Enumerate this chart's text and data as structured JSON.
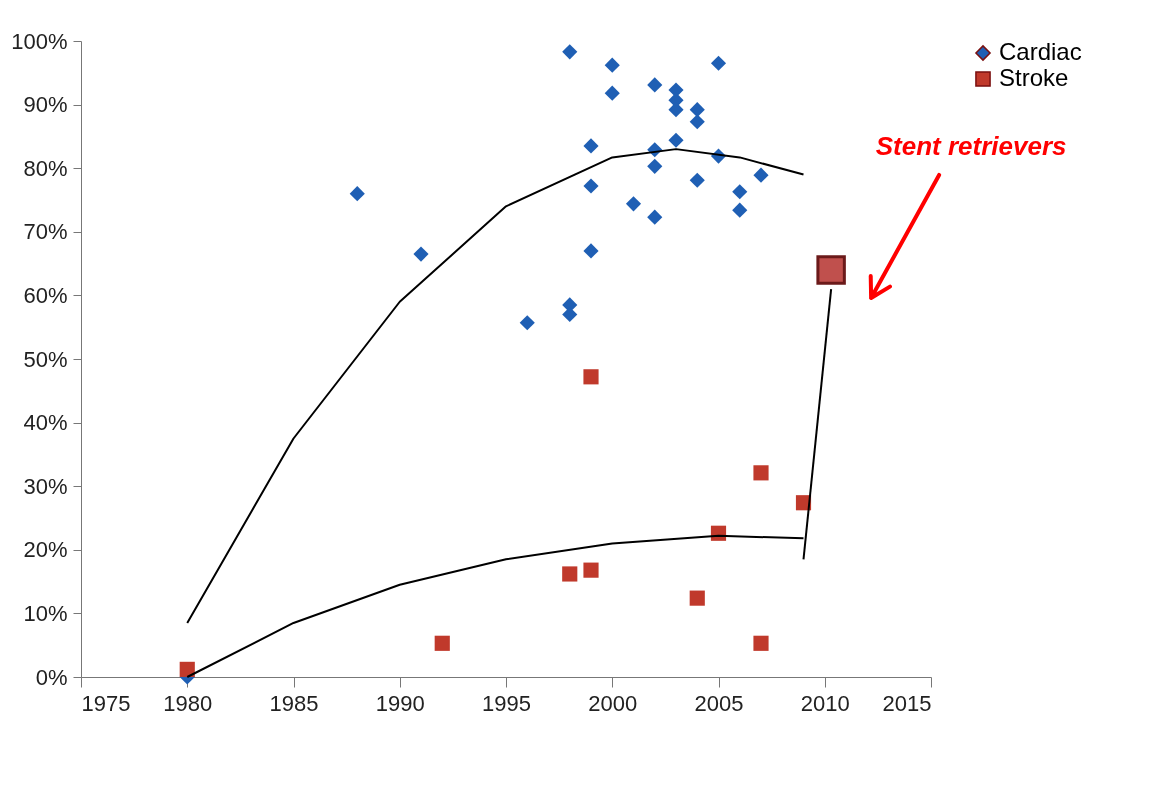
{
  "chart_data": {
    "type": "scatter",
    "xlim": [
      1975,
      2015
    ],
    "xticks": [
      1975,
      1980,
      1985,
      1990,
      1995,
      2000,
      2005,
      2010,
      2015
    ],
    "ylim": [
      0,
      100
    ],
    "yticks": [
      {
        "value": 0,
        "label": "0%"
      },
      {
        "value": 10,
        "label": "10%"
      },
      {
        "value": 20,
        "label": "20%"
      },
      {
        "value": 30,
        "label": "30%"
      },
      {
        "value": 40,
        "label": "40%"
      },
      {
        "value": 50,
        "label": "50%"
      },
      {
        "value": 60,
        "label": "60%"
      },
      {
        "value": 70,
        "label": "70%"
      },
      {
        "value": 80,
        "label": "80%"
      },
      {
        "value": 90,
        "label": "90%"
      },
      {
        "value": 100,
        "label": "100%"
      }
    ],
    "grid": false,
    "legend": "right",
    "series": [
      {
        "name": "Cardiac",
        "marker": "diamond",
        "color": "#1f5fb4",
        "x": [
          1980,
          1988,
          1991,
          1996,
          1998,
          1998,
          1998,
          1999,
          1999,
          1999,
          2000,
          2000,
          2001,
          2002,
          2002,
          2002,
          2002,
          2003,
          2003,
          2003,
          2003,
          2004,
          2004,
          2004,
          2005,
          2005,
          2006,
          2006,
          2007
        ],
        "values": [
          0,
          76,
          66.5,
          55.7,
          58.5,
          57,
          98.3,
          67,
          77.2,
          83.5,
          96.2,
          91.8,
          74.4,
          93.1,
          82.9,
          80.3,
          72.3,
          92.3,
          90.7,
          89.2,
          84.4,
          89.2,
          87.3,
          78.1,
          96.5,
          81.9,
          76.3,
          73.4,
          78.9
        ]
      },
      {
        "name": "Stroke",
        "marker": "square",
        "color": "#c0392b",
        "x": [
          1980,
          1992,
          1998,
          1999,
          1999,
          2004,
          2005,
          2007,
          2007,
          2009
        ],
        "values": [
          1.2,
          5.3,
          16.2,
          16.8,
          47.2,
          12.4,
          22.6,
          32.1,
          5.3,
          27.4
        ]
      },
      {
        "marker": "square",
        "color": "#c0504d",
        "x": [
          2010.3
        ],
        "values": [
          64
        ]
      },
      {
        "type": "line",
        "color": "#000000",
        "x": [
          1980,
          1985,
          1990,
          1995,
          2000,
          2003,
          2006,
          2009
        ],
        "values": [
          8.5,
          37.5,
          59,
          74,
          81.7,
          83,
          81.7,
          79
        ]
      },
      {
        "type": "line",
        "color": "#000000",
        "x": [
          1980,
          1985,
          1990,
          1995,
          2000,
          2005,
          2009
        ],
        "values": [
          0,
          8.5,
          14.5,
          18.5,
          21,
          22.2,
          21.8
        ]
      },
      {
        "type": "line",
        "color": "#000000",
        "x": [
          2009,
          2010.3
        ],
        "values": [
          18.5,
          61
        ]
      }
    ],
    "annotations": [
      "Stent retrievers"
    ]
  }
}
